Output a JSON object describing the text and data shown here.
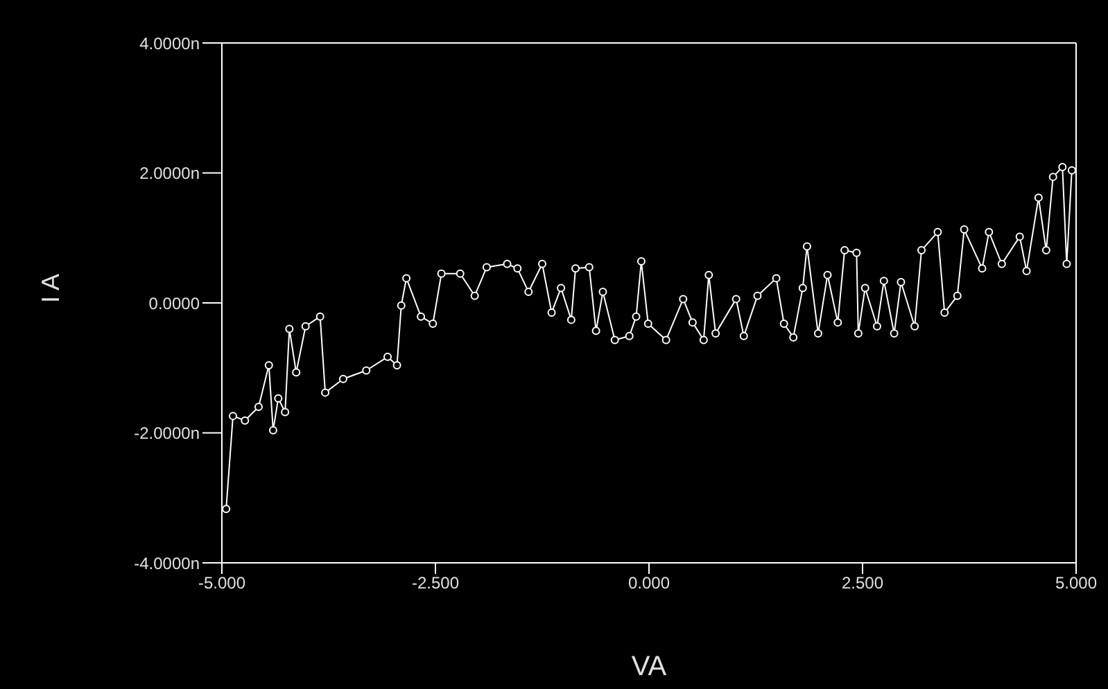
{
  "chart_data": {
    "type": "line",
    "xlabel": "VA",
    "ylabel": "I A",
    "marker": "circle",
    "xlim": [
      -5,
      5
    ],
    "xticks": [
      {
        "value": -5,
        "label": "-5.000"
      },
      {
        "value": -2.5,
        "label": "-2.500"
      },
      {
        "value": 0,
        "label": "0.000"
      },
      {
        "value": 2.5,
        "label": "2.500"
      },
      {
        "value": 5,
        "label": "5.000"
      }
    ],
    "ylim": [
      -4,
      4
    ],
    "yticks": [
      {
        "value": -4,
        "label": "-4.0000n"
      },
      {
        "value": -2,
        "label": "-2.0000n"
      },
      {
        "value": 0,
        "label": "0.0000"
      },
      {
        "value": 2,
        "label": "2.0000n"
      },
      {
        "value": 4,
        "label": "4.0000n"
      }
    ],
    "series": [
      {
        "color": "#ffffff",
        "x": [
          -4.95,
          -4.87,
          -4.73,
          -4.57,
          -4.45,
          -4.4,
          -4.34,
          -4.26,
          -4.21,
          -4.13,
          -4.02,
          -3.85,
          -3.79,
          -3.58,
          -3.31,
          -3.06,
          -2.95,
          -2.9,
          -2.84,
          -2.67,
          -2.53,
          -2.43,
          -2.21,
          -2.04,
          -1.9,
          -1.66,
          -1.54,
          -1.41,
          -1.25,
          -1.14,
          -1.03,
          -0.91,
          -0.86,
          -0.7,
          -0.62,
          -0.54,
          -0.4,
          -0.23,
          -0.15,
          -0.09,
          -0.01,
          0.2,
          0.4,
          0.51,
          0.64,
          0.7,
          0.78,
          1.02,
          1.11,
          1.27,
          1.49,
          1.58,
          1.69,
          1.8,
          1.85,
          1.98,
          2.09,
          2.21,
          2.29,
          2.43,
          2.45,
          2.53,
          2.67,
          2.75,
          2.87,
          2.95,
          3.11,
          3.19,
          3.38,
          3.46,
          3.61,
          3.69,
          3.9,
          3.98,
          4.13,
          4.34,
          4.42,
          4.56,
          4.65,
          4.73,
          4.84,
          4.89,
          4.95
        ],
        "values": [
          -3.17,
          -1.74,
          -1.81,
          -1.6,
          -0.96,
          -1.96,
          -1.47,
          -1.68,
          -0.4,
          -1.07,
          -0.36,
          -0.21,
          -1.38,
          -1.17,
          -1.04,
          -0.83,
          -0.96,
          -0.04,
          0.38,
          -0.21,
          -0.32,
          0.45,
          0.45,
          0.11,
          0.55,
          0.6,
          0.53,
          0.17,
          0.6,
          -0.15,
          0.23,
          -0.26,
          0.53,
          0.55,
          -0.43,
          0.17,
          -0.57,
          -0.51,
          -0.21,
          0.64,
          -0.32,
          -0.57,
          0.06,
          -0.3,
          -0.57,
          0.43,
          -0.47,
          0.06,
          -0.51,
          0.11,
          0.38,
          -0.32,
          -0.53,
          0.23,
          0.87,
          -0.47,
          0.43,
          -0.3,
          0.81,
          0.77,
          -0.47,
          0.23,
          -0.36,
          0.34,
          -0.47,
          0.32,
          -0.36,
          0.81,
          1.09,
          -0.15,
          0.11,
          1.13,
          0.53,
          1.09,
          0.6,
          1.02,
          0.49,
          1.62,
          0.81,
          1.94,
          2.09,
          0.6,
          2.04
        ]
      }
    ]
  }
}
